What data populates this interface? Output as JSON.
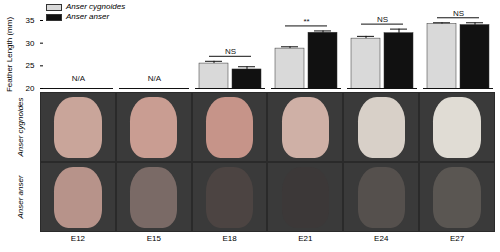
{
  "chart_data": {
    "type": "bar",
    "y_label": "Feather Length (mm)",
    "categories": [
      "E12",
      "E15",
      "E18",
      "E21",
      "E24",
      "E27"
    ],
    "series": [
      {
        "name": "Anser cygnoides",
        "color": "#d9d9d9",
        "values": [
          null,
          null,
          25.5,
          28.8,
          31.0,
          34.2
        ],
        "errors": [
          null,
          null,
          0.5,
          0.4,
          0.5,
          0.3
        ]
      },
      {
        "name": "Anser anser",
        "color": "#111111",
        "values": [
          null,
          null,
          24.2,
          32.3,
          32.2,
          34.0
        ],
        "errors": [
          null,
          null,
          0.6,
          0.4,
          0.9,
          0.5
        ]
      }
    ],
    "annotations": [
      "N/A",
      "N/A",
      "NS",
      "**",
      "NS",
      "NS"
    ],
    "ylim": [
      20,
      35
    ],
    "yticks": [
      20,
      25,
      30,
      35
    ],
    "grid": false,
    "legend": "top-left",
    "tick_labels": "y"
  }
}
